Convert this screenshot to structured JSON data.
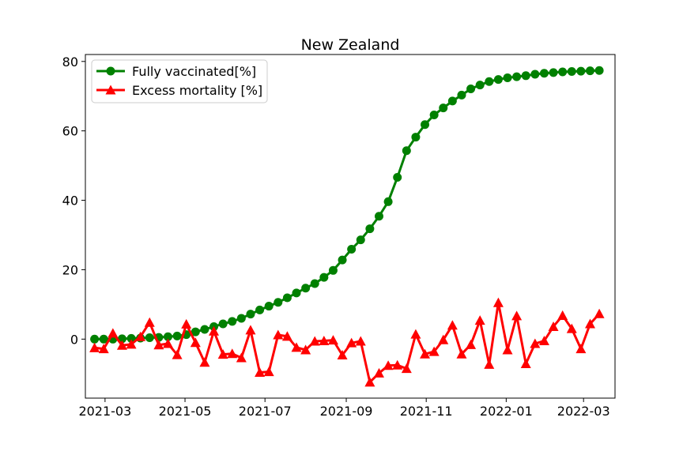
{
  "chart_data": {
    "type": "line",
    "title": "New Zealand",
    "xlabel": "",
    "ylabel": "",
    "x_ticks": [
      "2021-03",
      "2021-05",
      "2021-07",
      "2021-09",
      "2021-11",
      "2022-01",
      "2022-03"
    ],
    "x_tick_dates": [
      "2021-03-01",
      "2021-05-01",
      "2021-07-01",
      "2021-09-01",
      "2021-11-01",
      "2022-01-01",
      "2022-03-01"
    ],
    "y_ticks": [
      0,
      20,
      40,
      60,
      80
    ],
    "xlim": [
      "2021-02-14",
      "2022-03-25"
    ],
    "ylim": [
      -17,
      82
    ],
    "grid": false,
    "legend_position": "upper-left",
    "x": [
      "2021-02-21",
      "2021-02-28",
      "2021-03-07",
      "2021-03-14",
      "2021-03-21",
      "2021-03-28",
      "2021-04-04",
      "2021-04-11",
      "2021-04-18",
      "2021-04-25",
      "2021-05-02",
      "2021-05-09",
      "2021-05-16",
      "2021-05-23",
      "2021-05-30",
      "2021-06-06",
      "2021-06-13",
      "2021-06-20",
      "2021-06-27",
      "2021-07-04",
      "2021-07-11",
      "2021-07-18",
      "2021-07-25",
      "2021-08-01",
      "2021-08-08",
      "2021-08-15",
      "2021-08-22",
      "2021-08-29",
      "2021-09-05",
      "2021-09-12",
      "2021-09-19",
      "2021-09-26",
      "2021-10-03",
      "2021-10-10",
      "2021-10-17",
      "2021-10-24",
      "2021-10-31",
      "2021-11-07",
      "2021-11-14",
      "2021-11-21",
      "2021-11-28",
      "2021-12-05",
      "2021-12-12",
      "2021-12-19",
      "2021-12-26",
      "2022-01-02",
      "2022-01-09",
      "2022-01-16",
      "2022-01-23",
      "2022-01-30",
      "2022-02-06",
      "2022-02-13",
      "2022-02-20",
      "2022-02-27",
      "2022-03-06",
      "2022-03-13"
    ],
    "series": [
      {
        "name": "Fully vaccinated[%]",
        "color": "#008000",
        "marker": "circle",
        "values": [
          0,
          0,
          0,
          0.1,
          0.2,
          0.3,
          0.4,
          0.5,
          0.7,
          0.9,
          1.3,
          2.1,
          2.8,
          3.6,
          4.4,
          5.1,
          6.0,
          7.2,
          8.4,
          9.5,
          10.6,
          11.9,
          13.3,
          14.7,
          16.0,
          17.8,
          19.8,
          22.8,
          25.9,
          28.6,
          31.8,
          35.4,
          39.6,
          46.6,
          54.3,
          58.2,
          61.8,
          64.6,
          66.6,
          68.6,
          70.3,
          72.1,
          73.2,
          74.2,
          74.8,
          75.3,
          75.6,
          75.9,
          76.3,
          76.6,
          76.8,
          77.0,
          77.1,
          77.2,
          77.3,
          77.4
        ]
      },
      {
        "name": "Excess mortality [%]",
        "color": "#ff0000",
        "marker": "triangle",
        "values": [
          -2.5,
          -2.8,
          1.7,
          -1.8,
          -1.5,
          0.7,
          4.8,
          -1.7,
          -1.3,
          -4.5,
          4.3,
          -1.0,
          -6.7,
          2.3,
          -4.4,
          -4.2,
          -5.4,
          2.6,
          -9.6,
          -9.4,
          1.2,
          0.8,
          -2.4,
          -3.1,
          -0.6,
          -0.5,
          -0.3,
          -4.6,
          -1.1,
          -0.6,
          -12.4,
          -9.8,
          -7.6,
          -7.5,
          -8.5,
          1.4,
          -4.3,
          -3.6,
          -0.2,
          4.0,
          -4.3,
          -1.6,
          5.4,
          -7.3,
          10.5,
          -3.1,
          6.7,
          -7.1,
          -1.3,
          -0.5,
          3.6,
          6.8,
          3.0,
          -2.8,
          4.4,
          7.3
        ]
      }
    ]
  }
}
